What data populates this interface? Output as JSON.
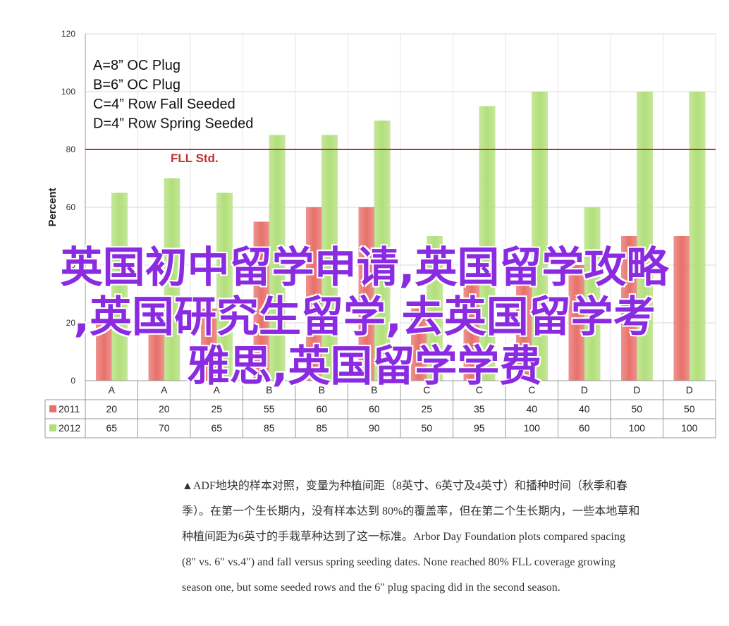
{
  "chart_data": {
    "type": "bar",
    "ylabel": "Percent",
    "ylim": [
      0,
      120
    ],
    "yticks": [
      0,
      20,
      40,
      60,
      80,
      100,
      120
    ],
    "grid": true,
    "categories": [
      "A",
      "A",
      "A",
      "B",
      "B",
      "B",
      "C",
      "C",
      "C",
      "D",
      "D",
      "D"
    ],
    "series": [
      {
        "name": "2011",
        "color": "#e8706a",
        "values": [
          20,
          20,
          25,
          55,
          60,
          60,
          25,
          35,
          40,
          40,
          50,
          50
        ]
      },
      {
        "name": "2012",
        "color": "#b2df7a",
        "values": [
          65,
          70,
          65,
          85,
          85,
          90,
          50,
          95,
          100,
          60,
          100,
          100
        ]
      }
    ],
    "reference_line": {
      "label": "FLL Std.",
      "value": 80,
      "color": "#c0302b"
    },
    "annotation_lines": [
      "A=8” OC Plug",
      "B=6” OC Plug",
      "C=4” Row Fall Seeded",
      "D=4” Row Spring Seeded"
    ]
  },
  "caption": {
    "lines": [
      "▲ADF地块的样本对照，变量为种植间距（8英寸、6英寸及4英寸）和播种时间（秋季和春",
      "季）。在第一个生长期内，没有样本达到 80%的覆盖率，但在第二个生长期内，一些本地草和",
      "种植间距为6英寸的手栽草种达到了这一标准。Arbor Day Foundation plots compared spacing",
      "(8″ vs. 6″ vs.4″) and fall versus spring seeding dates. None reached 80% FLL coverage growing",
      "season one, but some seeded rows and the 6″ plug spacing did in the second season."
    ]
  },
  "overlay": {
    "lines": [
      "英国初中留学申请,英国留学攻略",
      ",英国研究生留学,去英国留学考",
      "雅思,英国留学学费"
    ]
  }
}
